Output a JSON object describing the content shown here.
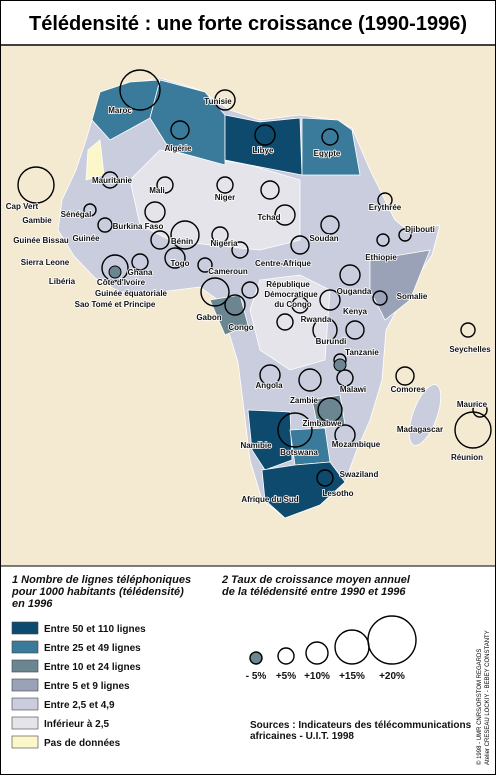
{
  "header": {
    "title": "Télédensité : une forte croissance (1990-1996)"
  },
  "map": {
    "labels": [
      "Maroc",
      "Tunisie",
      "Algérie",
      "Libye",
      "Egypte",
      "Mauritanie",
      "Mali",
      "Niger",
      "Tchad",
      "Soudan",
      "Erythrée",
      "Djibouti",
      "Cap Vert",
      "Gambie",
      "Sénégal",
      "Guinée Bissau",
      "Guinée",
      "Burkina Faso",
      "Bénin",
      "Nigeria",
      "Ethiopie",
      "Sierra Leone",
      "Centre-Afrique",
      "Libéria",
      "Ghana",
      "Togo",
      "Cameroun",
      "Côte d'Ivoire",
      "Guinée équatoriale",
      "République",
      "Démocratique",
      "du Congo",
      "Ouganda",
      "Somalie",
      "Sao Tomé et Principe",
      "Gabon",
      "Congo",
      "Kenya",
      "Rwanda",
      "Burundi",
      "Tanzanie",
      "Seychelles",
      "Angola",
      "Malawi",
      "Comores",
      "Zambie",
      "Maurice",
      "Zimbabwe",
      "Madagascar",
      "Mozambique",
      "Namibie",
      "Botswana",
      "Réunion",
      "Swaziland",
      "Lesotho",
      "Afrique du Sud"
    ]
  },
  "legend": {
    "density_title": [
      "1 Nombre de lignes téléphoniques",
      "pour 1000 habitants (télédensité)",
      "en 1996"
    ],
    "density_items": [
      "Entre 50 et 110 lignes",
      "Entre 25 et 49 lignes",
      "Entre 10 et 24 lignes",
      "Entre 5 et 9 lignes",
      "Entre 2,5 et 4,9",
      "Inférieur à 2,5",
      "Pas de données"
    ],
    "growth_title": [
      "2 Taux de croissance moyen annuel",
      "de la télédensité entre 1990 et 1996"
    ],
    "growth_items": [
      "- 5%",
      "+5%",
      "+10%",
      "+15%",
      "+20%"
    ]
  },
  "sources": [
    "Sources : Indicateurs des télécommunications",
    "africaines - U.I.T. 1998"
  ],
  "credit": [
    "© 1998 - UMR CNRS/ORSTOM REGARDS",
    "Atelier CRESEAU LOCKIY - BEBEY CONSTANTY"
  ]
}
